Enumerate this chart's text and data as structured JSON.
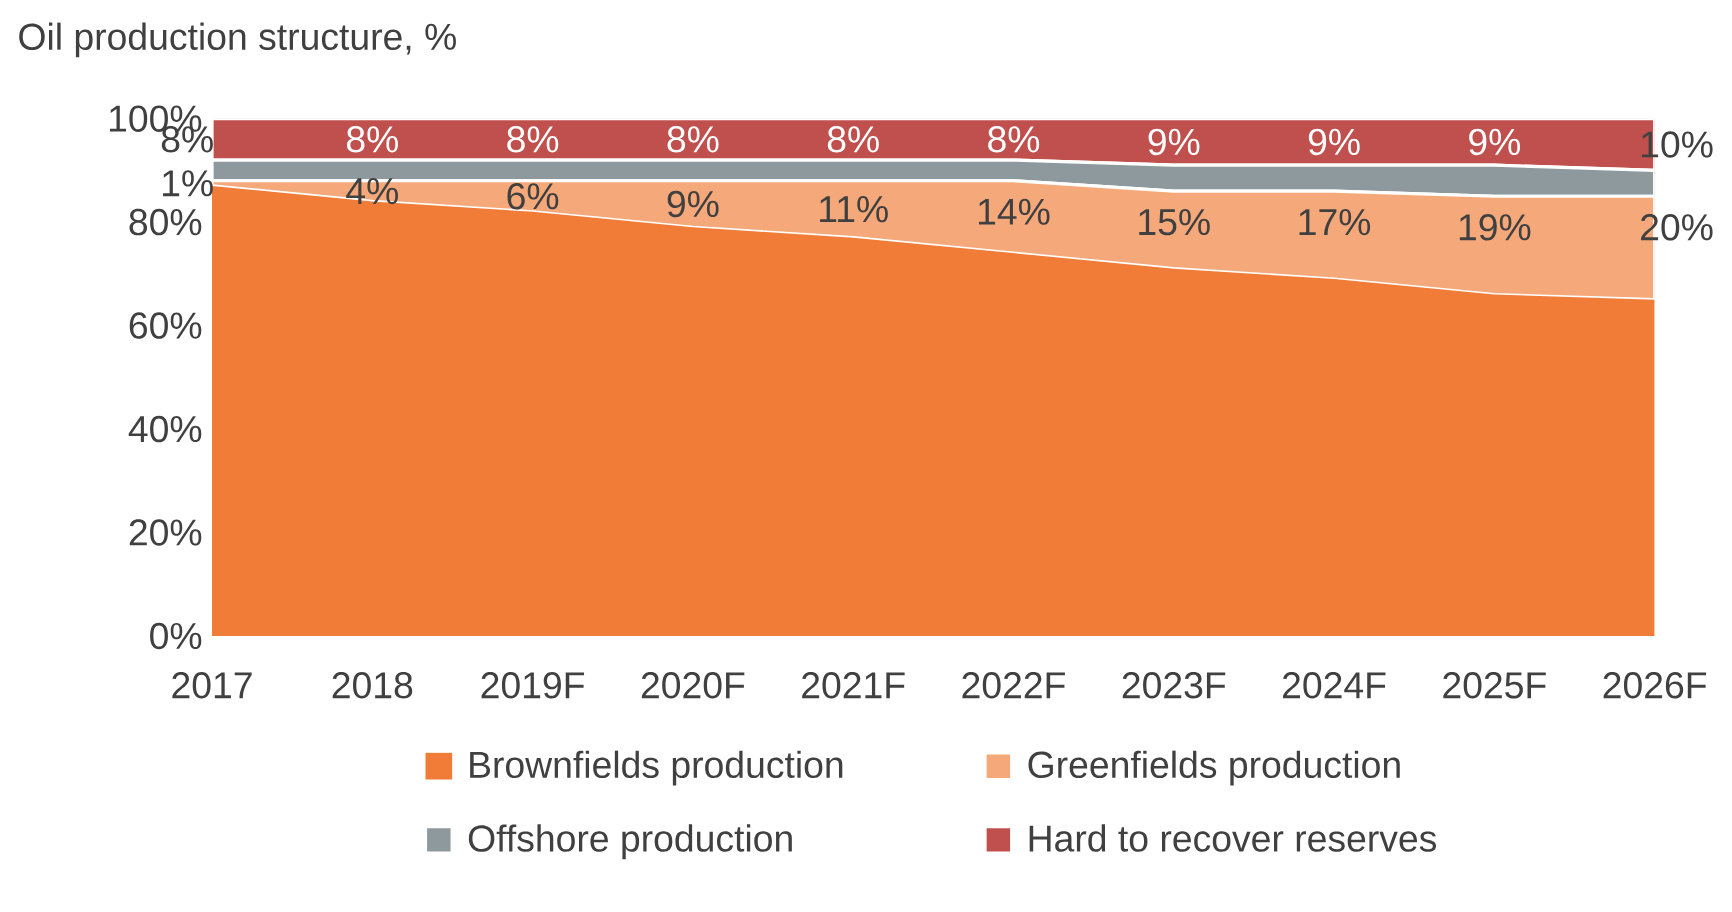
{
  "chart_data": {
    "type": "area",
    "stacked": true,
    "title": "Oil production structure, %",
    "categories": [
      "2017",
      "2018",
      "2019F",
      "2020F",
      "2021F",
      "2022F",
      "2023F",
      "2024F",
      "2025F",
      "2026F"
    ],
    "series": [
      {
        "name": "Brownfields production",
        "color": "#f07c38",
        "values": [
          87,
          84,
          82,
          79,
          77,
          74,
          71,
          69,
          66,
          65
        ]
      },
      {
        "name": "Greenfields production",
        "color": "#f5a97b",
        "values": [
          1,
          4,
          6,
          9,
          11,
          14,
          15,
          17,
          19,
          20
        ],
        "value_labels": [
          "1%",
          "4%",
          "6%",
          "9%",
          "11%",
          "14%",
          "15%",
          "17%",
          "19%",
          "20%"
        ]
      },
      {
        "name": "Offshore production",
        "color": "#8e999e",
        "values": [
          4,
          4,
          4,
          4,
          4,
          4,
          5,
          5,
          6,
          5
        ]
      },
      {
        "name": "Hard to recover reserves",
        "color": "#c0504d",
        "values": [
          8,
          8,
          8,
          8,
          8,
          8,
          9,
          9,
          9,
          10
        ],
        "value_labels": [
          "8%",
          "8%",
          "8%",
          "8%",
          "8%",
          "8%",
          "9%",
          "9%",
          "9%",
          "10%"
        ]
      }
    ],
    "ylim": [
      0,
      100
    ],
    "yticks": [
      {
        "value": 0,
        "label": "0%"
      },
      {
        "value": 20,
        "label": "20%"
      },
      {
        "value": 40,
        "label": "40%"
      },
      {
        "value": 60,
        "label": "60%"
      },
      {
        "value": 80,
        "label": "80%"
      },
      {
        "value": 100,
        "label": "100%"
      }
    ],
    "grid": false,
    "legend": "bottom"
  }
}
